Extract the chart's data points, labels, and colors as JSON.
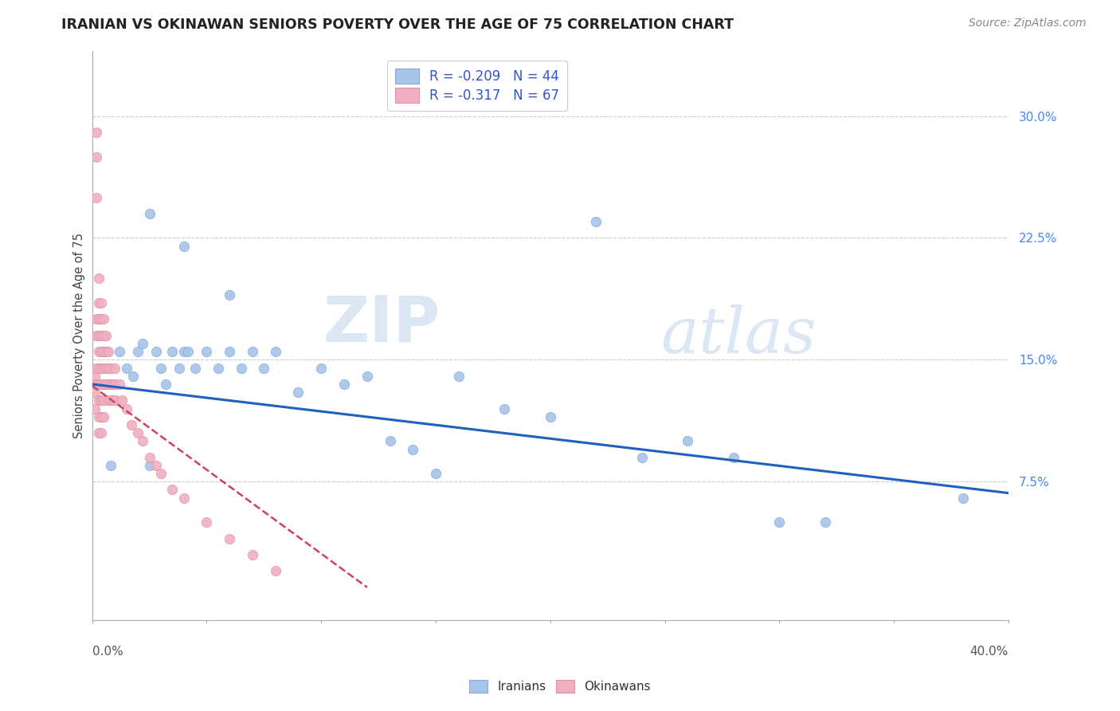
{
  "title": "IRANIAN VS OKINAWAN SENIORS POVERTY OVER THE AGE OF 75 CORRELATION CHART",
  "source": "Source: ZipAtlas.com",
  "ylabel": "Seniors Poverty Over the Age of 75",
  "ytick_labels": [
    "7.5%",
    "15.0%",
    "22.5%",
    "30.0%"
  ],
  "ytick_values": [
    0.075,
    0.15,
    0.225,
    0.3
  ],
  "xtick_labels": [
    "0.0%",
    "40.0%"
  ],
  "xlim": [
    0.0,
    0.4
  ],
  "ylim": [
    -0.01,
    0.34
  ],
  "legend_iranian": "R = -0.209   N = 44",
  "legend_okinawan": "R = -0.317   N = 67",
  "iranian_color": "#a8c4e8",
  "okinawan_color": "#f0b0c0",
  "iranian_line_color": "#2060c0",
  "okinawan_line_color": "#d04060",
  "watermark_zip": "ZIP",
  "watermark_atlas": "atlas",
  "background_color": "#ffffff",
  "grid_color": "#cccccc",
  "iranians_x": [
    0.005,
    0.008,
    0.01,
    0.012,
    0.015,
    0.018,
    0.02,
    0.022,
    0.025,
    0.028,
    0.03,
    0.032,
    0.035,
    0.038,
    0.04,
    0.042,
    0.045,
    0.05,
    0.055,
    0.06,
    0.065,
    0.07,
    0.075,
    0.08,
    0.09,
    0.1,
    0.11,
    0.12,
    0.13,
    0.14,
    0.15,
    0.16,
    0.18,
    0.2,
    0.22,
    0.24,
    0.26,
    0.28,
    0.3,
    0.32,
    0.025,
    0.04,
    0.06,
    0.38
  ],
  "iranians_y": [
    0.155,
    0.085,
    0.125,
    0.155,
    0.145,
    0.14,
    0.155,
    0.16,
    0.085,
    0.155,
    0.145,
    0.135,
    0.155,
    0.145,
    0.155,
    0.155,
    0.145,
    0.155,
    0.145,
    0.155,
    0.145,
    0.155,
    0.145,
    0.155,
    0.13,
    0.145,
    0.135,
    0.14,
    0.1,
    0.095,
    0.08,
    0.14,
    0.12,
    0.115,
    0.235,
    0.09,
    0.1,
    0.09,
    0.05,
    0.05,
    0.24,
    0.22,
    0.19,
    0.065
  ],
  "okinawans_x": [
    0.001,
    0.001,
    0.001,
    0.002,
    0.002,
    0.002,
    0.002,
    0.002,
    0.002,
    0.002,
    0.003,
    0.003,
    0.003,
    0.003,
    0.003,
    0.003,
    0.003,
    0.003,
    0.003,
    0.003,
    0.004,
    0.004,
    0.004,
    0.004,
    0.004,
    0.004,
    0.004,
    0.004,
    0.004,
    0.005,
    0.005,
    0.005,
    0.005,
    0.005,
    0.005,
    0.005,
    0.006,
    0.006,
    0.006,
    0.006,
    0.007,
    0.007,
    0.007,
    0.007,
    0.008,
    0.008,
    0.008,
    0.009,
    0.009,
    0.01,
    0.01,
    0.01,
    0.012,
    0.013,
    0.015,
    0.017,
    0.02,
    0.022,
    0.025,
    0.028,
    0.03,
    0.035,
    0.04,
    0.05,
    0.06,
    0.07,
    0.08
  ],
  "okinawans_y": [
    0.14,
    0.13,
    0.12,
    0.29,
    0.275,
    0.25,
    0.175,
    0.165,
    0.145,
    0.135,
    0.2,
    0.185,
    0.175,
    0.165,
    0.155,
    0.145,
    0.135,
    0.125,
    0.115,
    0.105,
    0.185,
    0.175,
    0.165,
    0.155,
    0.145,
    0.135,
    0.125,
    0.115,
    0.105,
    0.175,
    0.165,
    0.155,
    0.145,
    0.135,
    0.125,
    0.115,
    0.165,
    0.155,
    0.145,
    0.135,
    0.155,
    0.145,
    0.135,
    0.125,
    0.145,
    0.135,
    0.125,
    0.135,
    0.125,
    0.145,
    0.135,
    0.125,
    0.135,
    0.125,
    0.12,
    0.11,
    0.105,
    0.1,
    0.09,
    0.085,
    0.08,
    0.07,
    0.065,
    0.05,
    0.04,
    0.03,
    0.02
  ],
  "iranian_trend_x": [
    0.0,
    0.4
  ],
  "iranian_trend_y": [
    0.135,
    0.068
  ],
  "okinawan_trend_x": [
    0.0,
    0.12
  ],
  "okinawan_trend_y": [
    0.134,
    0.01
  ]
}
